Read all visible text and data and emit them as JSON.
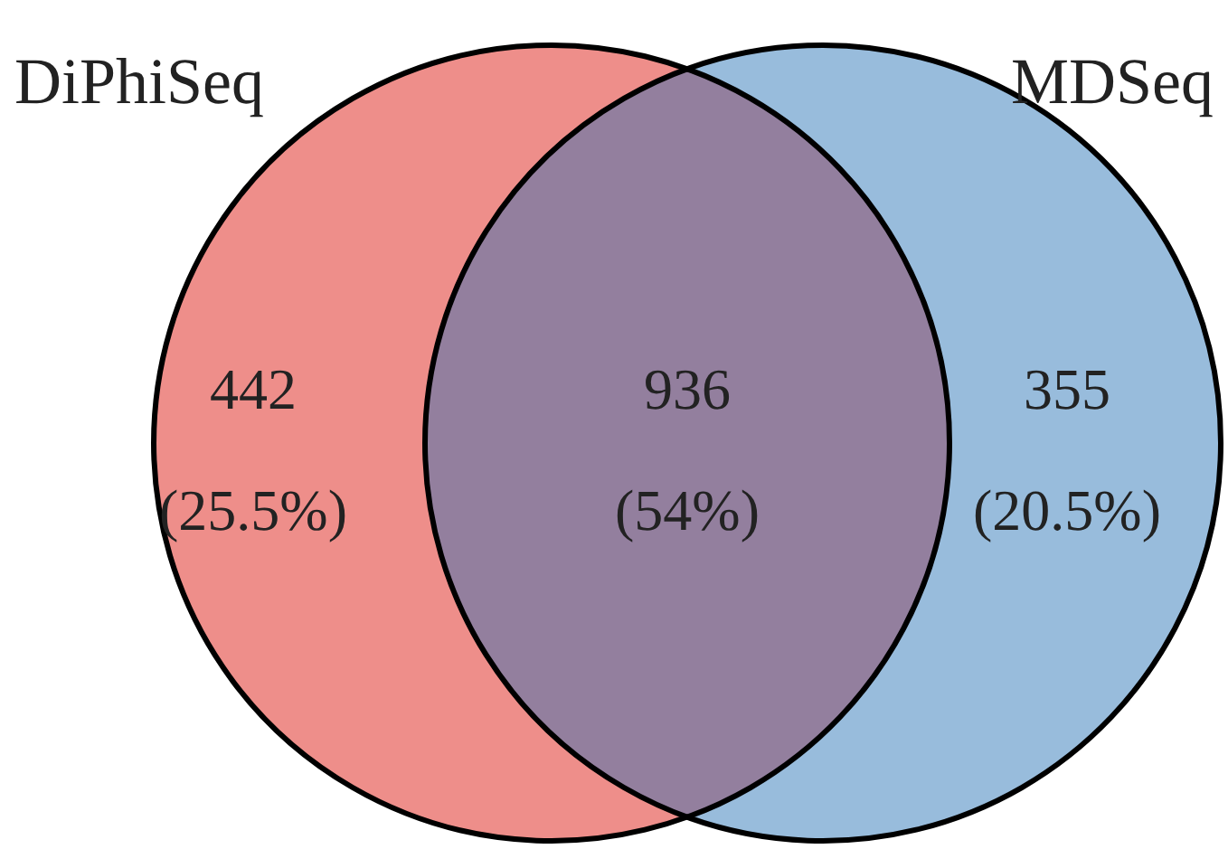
{
  "chart_data": {
    "type": "other",
    "categories": [
      null,
      null,
      null
    ],
    "values": [
      442,
      936,
      355
    ],
    "data_labels": true,
    "colors": [
      "#ee8e8a",
      "#937f9e",
      "#98bcdc"
    ],
    "annotations": [
      "DiPhiSeq",
      "MDSeq",
      "(25.5%)",
      "(54%)",
      "(20.5%)"
    ]
  }
}
